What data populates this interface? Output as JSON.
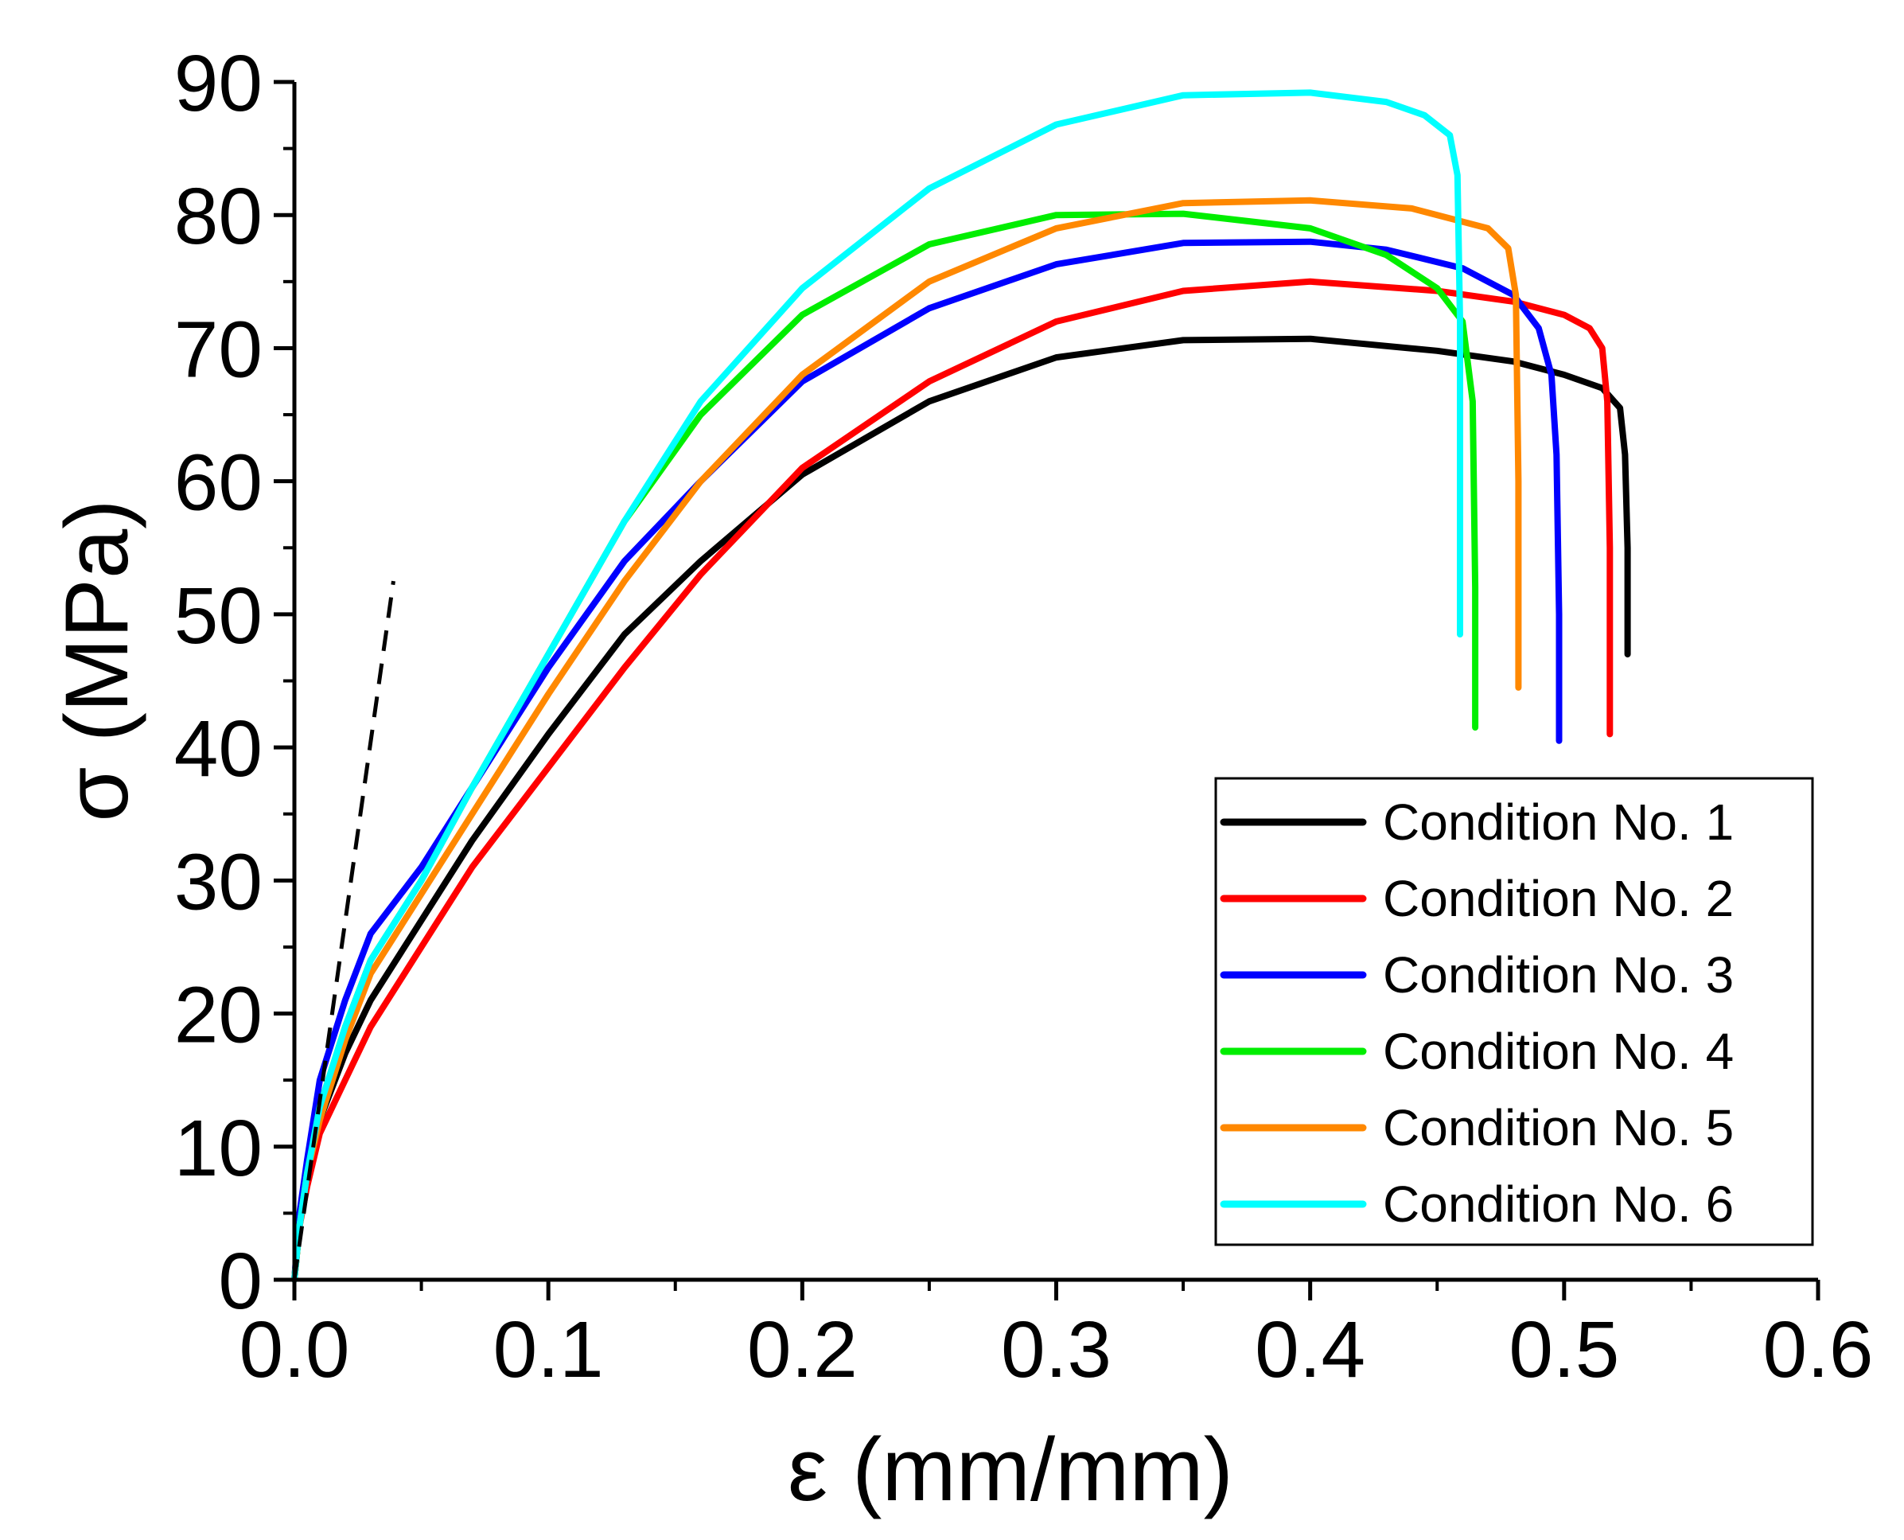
{
  "chart_data": {
    "type": "line",
    "title": "",
    "xlabel": "ε (mm/mm)",
    "ylabel": "σ (MPa)",
    "xlim": [
      0,
      0.6
    ],
    "ylim": [
      0,
      90
    ],
    "xticks": [
      0.0,
      0.1,
      0.2,
      0.3,
      0.4,
      0.5,
      0.6
    ],
    "xtick_labels": [
      "0.0",
      "0.1",
      "0.2",
      "0.3",
      "0.4",
      "0.5",
      "0.6"
    ],
    "yticks": [
      0,
      10,
      20,
      30,
      40,
      50,
      60,
      70,
      80,
      90
    ],
    "ytick_labels": [
      "0",
      "10",
      "20",
      "30",
      "40",
      "50",
      "60",
      "70",
      "80",
      "90"
    ],
    "grid": false,
    "legend_position": "bottom-right",
    "reference_line": {
      "style": "dashed",
      "color": "#000000",
      "x": [
        0.0,
        0.039
      ],
      "y": [
        0,
        52.5
      ]
    },
    "series": [
      {
        "name": "Condition No. 1",
        "color": "#000000",
        "x": [
          0,
          0.002,
          0.005,
          0.01,
          0.02,
          0.03,
          0.05,
          0.07,
          0.1,
          0.13,
          0.16,
          0.2,
          0.25,
          0.3,
          0.35,
          0.4,
          0.45,
          0.48,
          0.5,
          0.515,
          0.522,
          0.524,
          0.525,
          0.525
        ],
        "y": [
          0,
          4,
          8,
          12,
          17,
          21,
          27,
          33,
          41,
          48.5,
          54,
          60.5,
          66,
          69.3,
          70.6,
          70.7,
          69.8,
          69,
          68,
          67,
          65.5,
          62,
          55,
          47
        ]
      },
      {
        "name": "Condition No. 2",
        "color": "#ff0000",
        "x": [
          0,
          0.002,
          0.005,
          0.01,
          0.02,
          0.03,
          0.05,
          0.07,
          0.1,
          0.13,
          0.16,
          0.2,
          0.25,
          0.3,
          0.35,
          0.4,
          0.45,
          0.48,
          0.5,
          0.51,
          0.515,
          0.517,
          0.518,
          0.518
        ],
        "y": [
          0,
          4,
          7,
          11,
          15,
          19,
          25,
          31,
          38.5,
          46,
          53,
          61,
          67.5,
          72,
          74.3,
          75,
          74.3,
          73.5,
          72.5,
          71.5,
          70,
          66,
          55,
          41
        ]
      },
      {
        "name": "Condition No. 3",
        "color": "#0000ff",
        "x": [
          0,
          0.002,
          0.005,
          0.01,
          0.02,
          0.03,
          0.05,
          0.07,
          0.1,
          0.13,
          0.16,
          0.2,
          0.25,
          0.3,
          0.35,
          0.4,
          0.43,
          0.46,
          0.48,
          0.49,
          0.495,
          0.497,
          0.498,
          0.498
        ],
        "y": [
          0,
          5,
          9,
          15,
          21,
          26,
          31,
          37,
          46,
          54,
          60,
          67.5,
          73,
          76.3,
          77.9,
          78,
          77.4,
          76,
          74,
          71.5,
          68,
          62,
          50,
          40.5
        ]
      },
      {
        "name": "Condition No. 4",
        "color": "#00ee00",
        "x": [
          0,
          0.002,
          0.005,
          0.01,
          0.02,
          0.03,
          0.05,
          0.07,
          0.1,
          0.13,
          0.16,
          0.2,
          0.25,
          0.3,
          0.35,
          0.4,
          0.43,
          0.45,
          0.46,
          0.464,
          0.465,
          0.465
        ],
        "y": [
          0,
          4,
          8,
          13,
          19,
          24,
          30,
          37,
          47,
          57,
          65,
          72.5,
          77.8,
          80,
          80.1,
          79,
          77,
          74.5,
          72,
          66,
          52,
          41.5
        ]
      },
      {
        "name": "Condition No. 5",
        "color": "#ff8800",
        "x": [
          0,
          0.002,
          0.005,
          0.01,
          0.02,
          0.03,
          0.05,
          0.07,
          0.1,
          0.13,
          0.16,
          0.2,
          0.25,
          0.3,
          0.35,
          0.4,
          0.44,
          0.47,
          0.478,
          0.481,
          0.482,
          0.482
        ],
        "y": [
          0,
          4,
          8,
          12,
          18,
          23,
          29,
          35,
          44,
          52.5,
          60,
          68,
          75,
          79,
          80.9,
          81.1,
          80.5,
          79,
          77.5,
          74,
          60,
          44.5
        ]
      },
      {
        "name": "Condition No. 6",
        "color": "#00ffff",
        "x": [
          0,
          0.002,
          0.005,
          0.01,
          0.02,
          0.03,
          0.05,
          0.07,
          0.1,
          0.13,
          0.16,
          0.2,
          0.25,
          0.3,
          0.35,
          0.4,
          0.43,
          0.445,
          0.455,
          0.458,
          0.459,
          0.459,
          0.459
        ],
        "y": [
          0,
          4,
          8,
          13,
          19,
          24,
          30,
          37,
          47,
          57,
          66,
          74.5,
          82,
          86.8,
          89,
          89.2,
          88.5,
          87.5,
          86,
          83,
          72,
          60,
          48.5
        ]
      }
    ]
  }
}
